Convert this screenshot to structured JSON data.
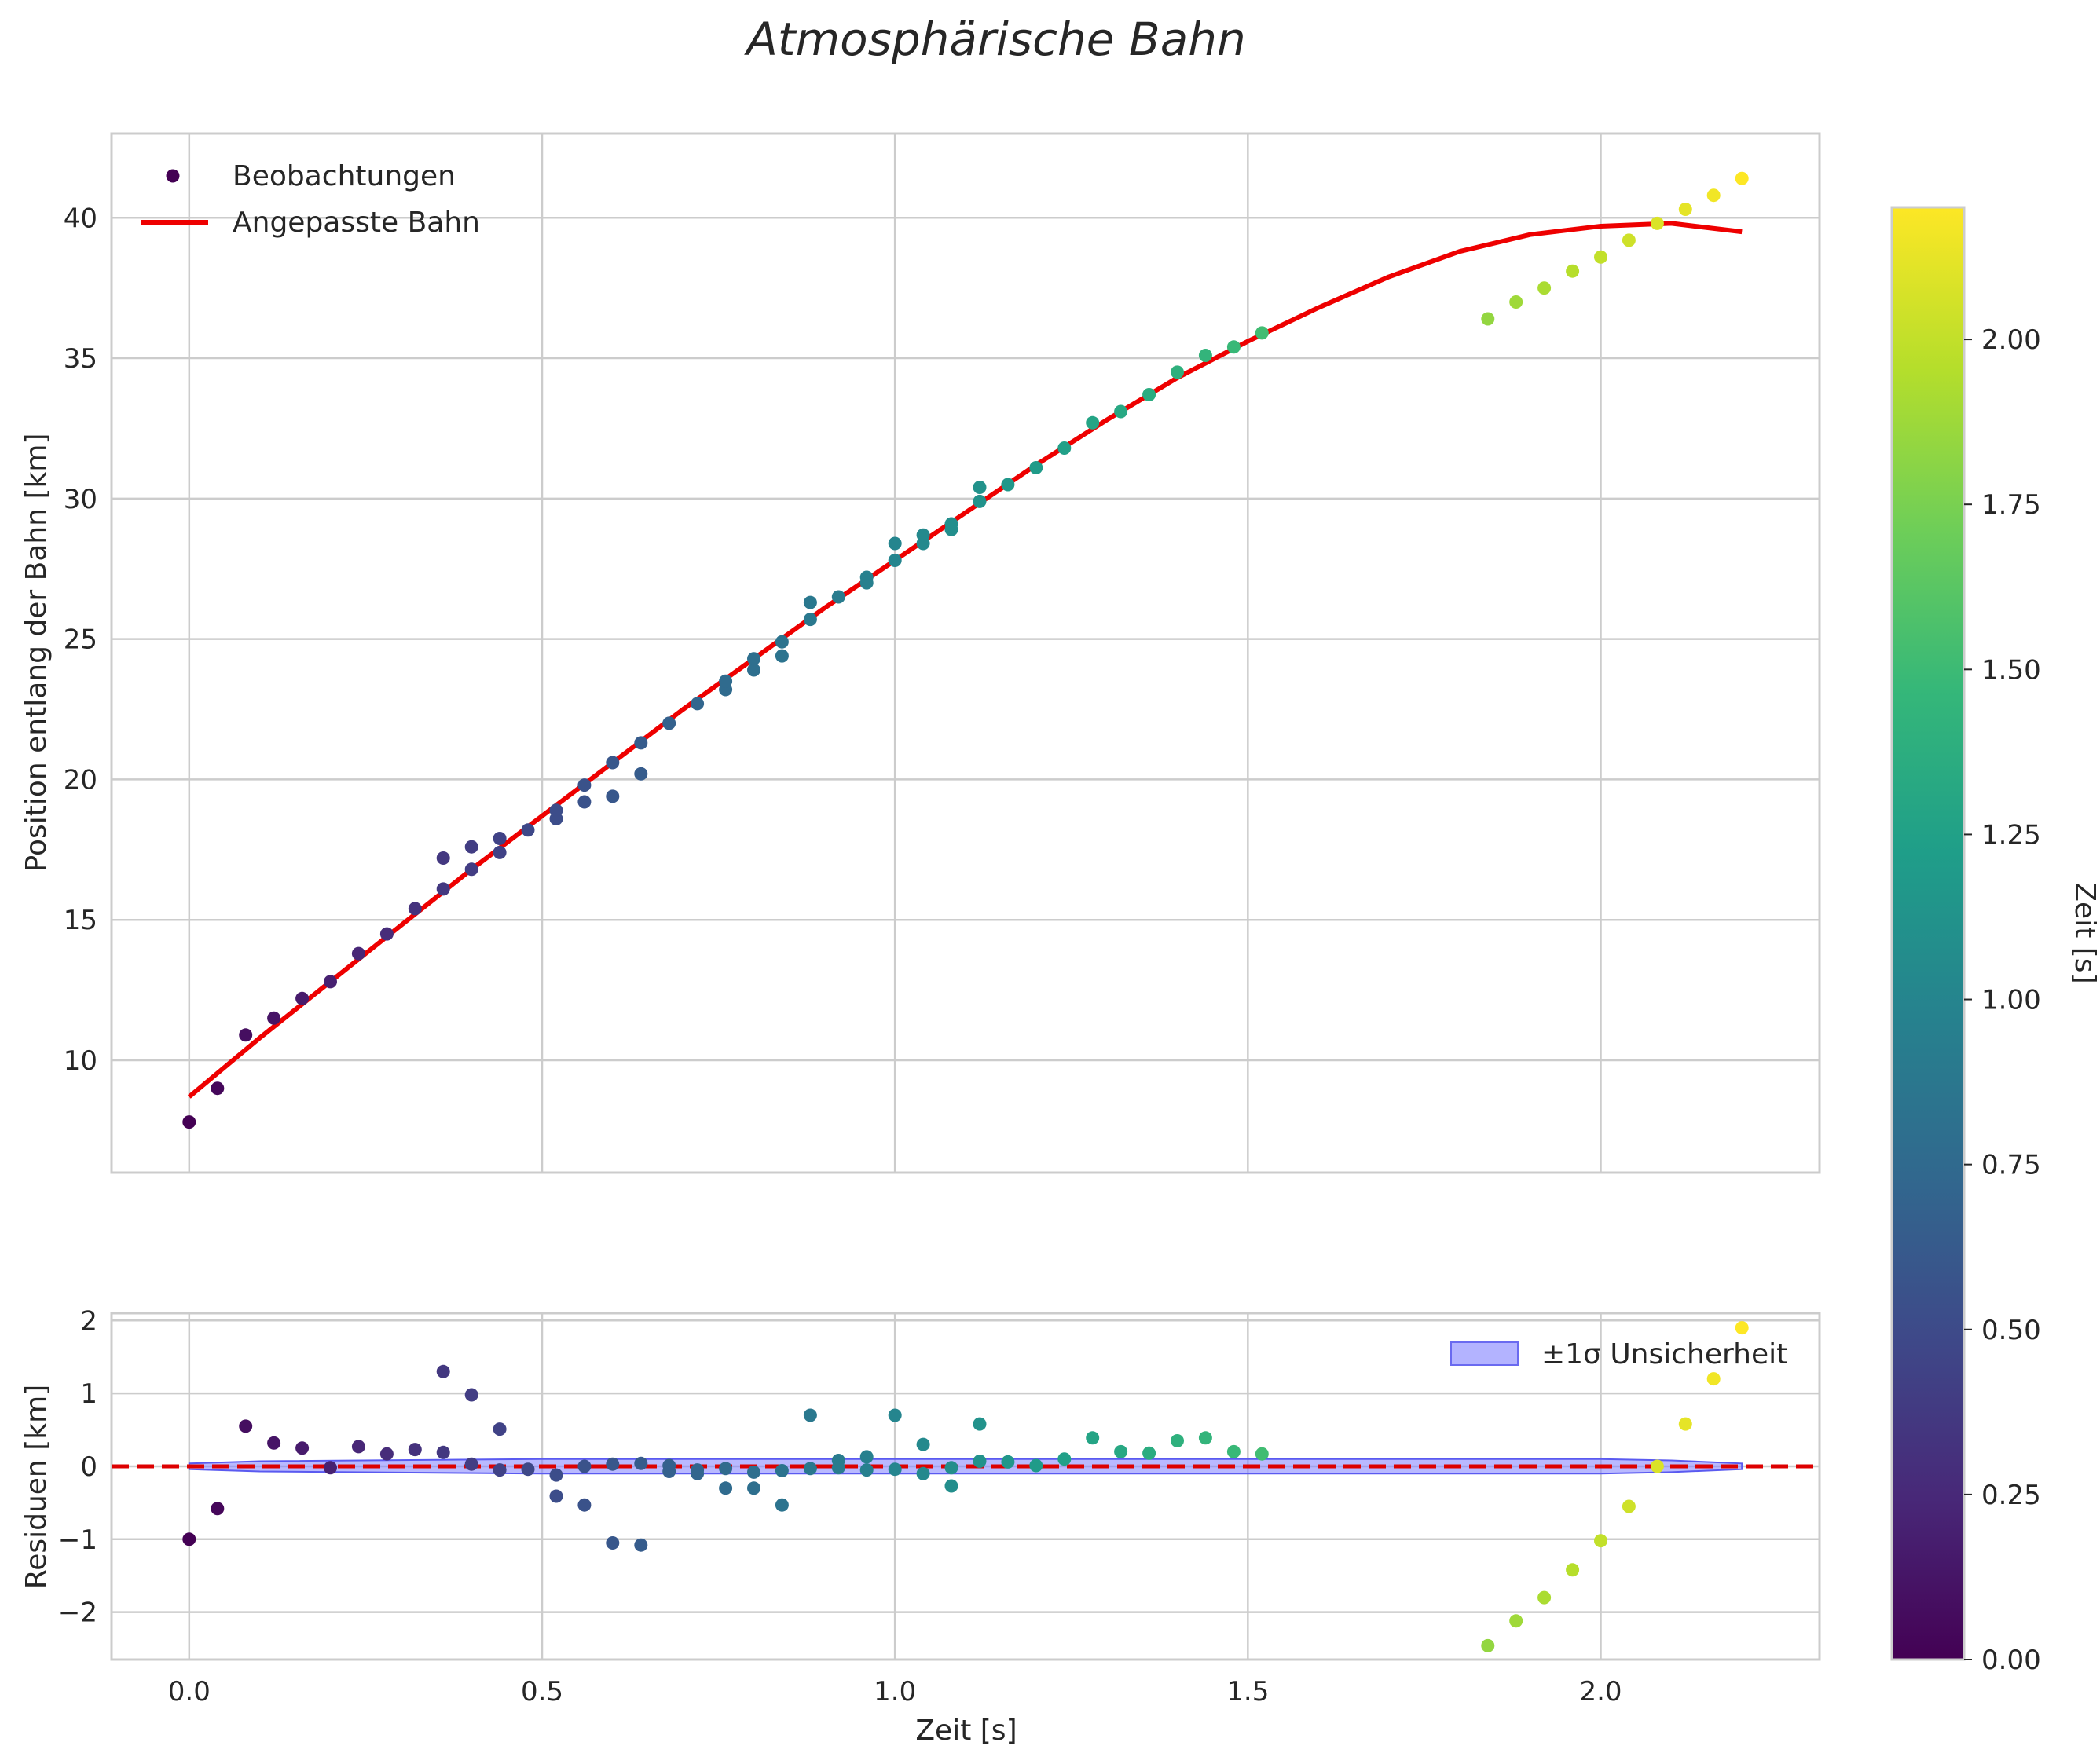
{
  "chart_data": {
    "title": "Atmosphärische Bahn",
    "colormap": "viridis",
    "viridis_stops": [
      "#440154",
      "#482878",
      "#3e4989",
      "#31688e",
      "#26828e",
      "#1f9e89",
      "#35b779",
      "#6ece58",
      "#b5de2b",
      "#fde725"
    ],
    "top": {
      "type": "scatter",
      "ylabel": "Position entlang der Bahn [km]",
      "ylim": [
        6.0,
        43.0
      ],
      "yticks": [
        10,
        15,
        20,
        25,
        30,
        35,
        40
      ],
      "ytick_labels": [
        "10",
        "15",
        "20",
        "25",
        "30",
        "35",
        "40"
      ],
      "legend": {
        "observations": "Beobachtungen",
        "fit": "Angepasste Bahn"
      },
      "fit_color": "#ee0000",
      "observations": {
        "t": [
          0.0,
          0.04,
          0.08,
          0.12,
          0.16,
          0.2,
          0.24,
          0.28,
          0.32,
          0.36,
          0.36,
          0.4,
          0.4,
          0.44,
          0.44,
          0.48,
          0.52,
          0.52,
          0.56,
          0.56,
          0.6,
          0.6,
          0.64,
          0.64,
          0.68,
          0.72,
          0.76,
          0.76,
          0.8,
          0.8,
          0.84,
          0.84,
          0.88,
          0.88,
          0.92,
          0.96,
          0.96,
          1.0,
          1.0,
          1.04,
          1.04,
          1.08,
          1.08,
          1.12,
          1.12,
          1.16,
          1.2,
          1.24,
          1.28,
          1.32,
          1.36,
          1.4,
          1.44,
          1.48,
          1.52,
          1.84,
          1.88,
          1.92,
          1.96,
          2.0,
          2.04,
          2.08,
          2.12,
          2.16,
          2.2
        ],
        "y": [
          7.8,
          9.0,
          10.9,
          11.5,
          12.2,
          12.8,
          13.8,
          14.5,
          15.4,
          16.1,
          17.2,
          16.8,
          17.6,
          17.4,
          17.9,
          18.2,
          18.6,
          18.9,
          19.2,
          19.8,
          19.4,
          20.6,
          20.2,
          21.3,
          22.0,
          22.7,
          23.2,
          23.5,
          23.9,
          24.3,
          24.4,
          24.9,
          25.7,
          26.3,
          26.5,
          27.0,
          27.2,
          27.8,
          28.4,
          28.4,
          28.7,
          28.9,
          29.1,
          29.9,
          30.4,
          30.5,
          31.1,
          31.8,
          32.7,
          33.1,
          33.7,
          34.5,
          35.1,
          35.4,
          35.9,
          36.4,
          37.0,
          37.5,
          38.1,
          38.6,
          39.2,
          39.8,
          40.3,
          40.8,
          41.4
        ]
      },
      "fit_curve": {
        "t": [
          0.0,
          0.1,
          0.2,
          0.3,
          0.4,
          0.5,
          0.6,
          0.7,
          0.8,
          0.9,
          1.0,
          1.1,
          1.2,
          1.3,
          1.4,
          1.5,
          1.6,
          1.7,
          1.8,
          1.9,
          2.0,
          2.1,
          2.2
        ],
        "y": [
          8.7,
          10.8,
          12.8,
          14.8,
          16.8,
          18.7,
          20.6,
          22.5,
          24.3,
          26.1,
          27.8,
          29.5,
          31.2,
          32.8,
          34.3,
          35.6,
          36.8,
          37.9,
          38.8,
          39.4,
          39.7,
          39.8,
          39.5
        ]
      }
    },
    "bottom": {
      "type": "scatter",
      "ylabel": "Residuen [km]",
      "ylim": [
        -2.65,
        2.1
      ],
      "yticks": [
        -2,
        -1,
        0,
        1,
        2
      ],
      "ytick_labels": [
        "−2",
        "−1",
        "0",
        "1",
        "2"
      ],
      "band_label": "±1σ Unsicherheit",
      "band_color": "#8080ff",
      "zero_line_color": "#dd0000",
      "residuals": {
        "t": [
          0.0,
          0.04,
          0.08,
          0.12,
          0.16,
          0.2,
          0.24,
          0.28,
          0.32,
          0.36,
          0.36,
          0.4,
          0.4,
          0.44,
          0.44,
          0.48,
          0.52,
          0.52,
          0.56,
          0.56,
          0.6,
          0.6,
          0.64,
          0.64,
          0.68,
          0.68,
          0.72,
          0.72,
          0.76,
          0.76,
          0.8,
          0.8,
          0.84,
          0.84,
          0.88,
          0.88,
          0.92,
          0.92,
          0.96,
          0.96,
          1.0,
          1.0,
          1.04,
          1.04,
          1.08,
          1.08,
          1.12,
          1.12,
          1.16,
          1.2,
          1.24,
          1.28,
          1.32,
          1.36,
          1.4,
          1.44,
          1.48,
          1.52,
          1.84,
          1.88,
          1.92,
          1.96,
          2.0,
          2.04,
          2.08,
          2.12,
          2.16,
          2.2
        ],
        "r": [
          -1.0,
          -0.58,
          0.55,
          0.32,
          0.25,
          -0.02,
          0.27,
          0.17,
          0.23,
          0.19,
          1.3,
          0.03,
          0.98,
          -0.05,
          0.51,
          -0.04,
          -0.41,
          -0.12,
          -0.53,
          0.0,
          -1.05,
          0.03,
          -1.08,
          0.04,
          -0.07,
          0.01,
          -0.1,
          -0.05,
          -0.3,
          -0.03,
          -0.3,
          -0.08,
          -0.53,
          -0.06,
          -0.03,
          0.7,
          -0.02,
          0.08,
          -0.05,
          0.13,
          -0.04,
          0.7,
          -0.1,
          0.3,
          -0.27,
          -0.02,
          0.07,
          0.58,
          0.06,
          0.01,
          0.1,
          0.39,
          0.2,
          0.18,
          0.35,
          0.39,
          0.2,
          0.17,
          -2.46,
          -2.12,
          -1.8,
          -1.42,
          -1.02,
          -0.55,
          0.0,
          0.58,
          1.2,
          1.9
        ]
      },
      "band": {
        "t": [
          0.0,
          0.1,
          0.5,
          1.0,
          1.5,
          2.0,
          2.1,
          2.2
        ],
        "sigma": [
          0.04,
          0.07,
          0.1,
          0.1,
          0.1,
          0.1,
          0.08,
          0.04
        ]
      }
    },
    "xlabel": "Zeit [s]",
    "xlim": [
      -0.11,
      2.31
    ],
    "xticks": [
      0.0,
      0.5,
      1.0,
      1.5,
      2.0
    ],
    "xtick_labels": [
      "0.0",
      "0.5",
      "1.0",
      "1.5",
      "2.0"
    ],
    "colorbar": {
      "label": "Zeit [s]",
      "range": [
        0.0,
        2.2
      ],
      "ticks": [
        0.0,
        0.25,
        0.5,
        0.75,
        1.0,
        1.25,
        1.5,
        1.75,
        2.0
      ],
      "tick_labels": [
        "0.00",
        "0.25",
        "0.50",
        "0.75",
        "1.00",
        "1.25",
        "1.50",
        "1.75",
        "2.00"
      ]
    }
  }
}
